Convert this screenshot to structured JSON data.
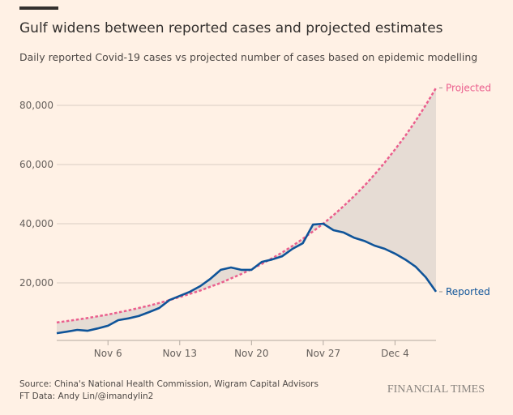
{
  "header": {
    "title": "Gulf widens between reported cases and projected estimates",
    "subtitle": "Daily reported Covid-19 cases vs projected number of cases based on epidemic modelling"
  },
  "footer": {
    "source": "Source: China's National Health Commission, Wigram Capital Advisors",
    "credit": "FT Data: Andy Lin/@imandylin2",
    "logo": "FINANCIAL TIMES"
  },
  "colors": {
    "background": "#fff1e5",
    "reported": "#0f5499",
    "projected": "#eb5e8d",
    "gap_fill": "#e6dcd4",
    "grid": "#d9cdc4"
  },
  "chart_data": {
    "type": "line",
    "title": "Gulf widens between reported cases and projected estimates",
    "x_start": "Nov 1",
    "x_end": "Dec 8",
    "x_ticks": [
      "Nov 6",
      "Nov 13",
      "Nov 20",
      "Nov 27",
      "Dec 4"
    ],
    "x_tick_days": [
      "Nov 6",
      "Nov 13",
      "Nov 20",
      "Nov 27",
      "Dec 4"
    ],
    "y_ticks": [
      20000,
      40000,
      60000,
      80000
    ],
    "y_tick_labels": [
      "20,000",
      "40,000",
      "60,000",
      "80,000"
    ],
    "ylim": [
      0,
      88000
    ],
    "grid": true,
    "shaded_gap_between_series": true,
    "dates": [
      "Nov 1",
      "Nov 2",
      "Nov 3",
      "Nov 4",
      "Nov 5",
      "Nov 6",
      "Nov 7",
      "Nov 8",
      "Nov 9",
      "Nov 10",
      "Nov 11",
      "Nov 12",
      "Nov 13",
      "Nov 14",
      "Nov 15",
      "Nov 16",
      "Nov 17",
      "Nov 18",
      "Nov 19",
      "Nov 20",
      "Nov 21",
      "Nov 22",
      "Nov 23",
      "Nov 24",
      "Nov 25",
      "Nov 26",
      "Nov 27",
      "Nov 28",
      "Nov 29",
      "Nov 30",
      "Dec 1",
      "Dec 2",
      "Dec 3",
      "Dec 4",
      "Dec 5",
      "Dec 6",
      "Dec 7",
      "Dec 8"
    ],
    "series": [
      {
        "name": "Reported",
        "style": "solid",
        "values": [
          3000,
          3500,
          4100,
          3800,
          4600,
          5500,
          7400,
          8000,
          8800,
          10100,
          11500,
          14200,
          15600,
          17000,
          18900,
          21400,
          24400,
          25200,
          24400,
          24400,
          27100,
          27900,
          29000,
          31500,
          33400,
          39700,
          40000,
          37800,
          37000,
          35300,
          34200,
          32600,
          31500,
          29900,
          27900,
          25500,
          21900,
          17000
        ]
      },
      {
        "name": "Projected",
        "style": "dashed",
        "values": [
          6600,
          7100,
          7600,
          8100,
          8700,
          9300,
          10000,
          10700,
          11500,
          12300,
          13200,
          14200,
          15200,
          16300,
          17400,
          18700,
          20000,
          21500,
          23000,
          24600,
          26400,
          28300,
          30300,
          32500,
          34900,
          37400,
          40000,
          42900,
          46000,
          49300,
          52800,
          56600,
          60700,
          65100,
          69700,
          74700,
          80100,
          85900
        ]
      }
    ]
  }
}
